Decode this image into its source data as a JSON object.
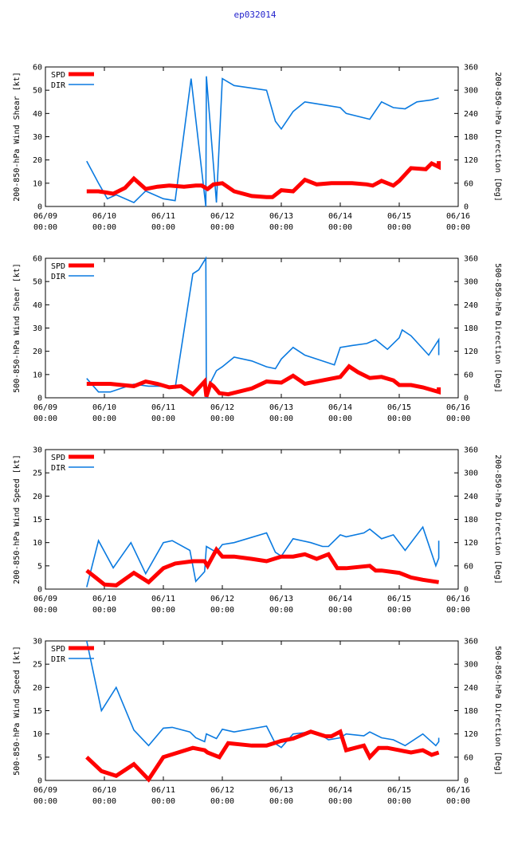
{
  "title": "ep032014",
  "x_tick_labels": [
    [
      "06/09",
      "00:00"
    ],
    [
      "06/10",
      "00:00"
    ],
    [
      "06/11",
      "00:00"
    ],
    [
      "06/12",
      "00:00"
    ],
    [
      "06/13",
      "00:00"
    ],
    [
      "06/14",
      "00:00"
    ],
    [
      "06/15",
      "00:00"
    ],
    [
      "06/16",
      "00:00"
    ]
  ],
  "colors": {
    "spd": "#ff0000",
    "dir": "#0a7ae0",
    "title": "#2222cc"
  },
  "chart_data": [
    {
      "type": "line",
      "ylabel": "200-850-hPa Wind Shear [kt]",
      "y2label": "200-850-hPa Direction [Deg]",
      "ylim": [
        0,
        60
      ],
      "y2lim": [
        0,
        360
      ],
      "yticks": [
        0,
        10,
        20,
        30,
        40,
        50,
        60
      ],
      "y2ticks": [
        0,
        60,
        120,
        180,
        240,
        300,
        360
      ],
      "xlim": [
        0,
        7
      ],
      "series": [
        {
          "name": "SPD",
          "axis": "left",
          "x": [
            0.7,
            0.9,
            1.03,
            1.15,
            1.35,
            1.5,
            1.7,
            1.9,
            2.1,
            2.35,
            2.55,
            2.65,
            2.75,
            2.85,
            3.0,
            3.2,
            3.5,
            3.75,
            3.85,
            4.0,
            4.2,
            4.4,
            4.6,
            4.85,
            5.0,
            5.2,
            5.45,
            5.55,
            5.7,
            5.9,
            6.0,
            6.2,
            6.45,
            6.55,
            6.67,
            6.67
          ],
          "values": [
            6.5,
            6.5,
            6.0,
            5.5,
            8.0,
            12.0,
            7.5,
            8.5,
            9.0,
            8.5,
            9.0,
            9.0,
            7.5,
            9.5,
            10.0,
            6.5,
            4.5,
            4.0,
            4.0,
            7.0,
            6.5,
            11.5,
            9.5,
            10.0,
            10.0,
            10.0,
            9.5,
            9.0,
            11.0,
            9.0,
            11.0,
            16.5,
            16.0,
            18.5,
            17.0,
            19.5
          ]
        },
        {
          "name": "DIR",
          "axis": "right",
          "x": [
            0.7,
            0.9,
            1.05,
            1.2,
            1.5,
            1.7,
            2.0,
            2.2,
            2.47,
            2.72,
            2.73,
            2.9,
            3.0,
            3.2,
            3.75,
            3.9,
            4.0,
            4.2,
            4.4,
            4.6,
            4.8,
            5.0,
            5.1,
            5.5,
            5.7,
            5.9,
            6.1,
            6.3,
            6.55,
            6.67
          ],
          "values": [
            117,
            60,
            20,
            30,
            10,
            40,
            20,
            15,
            330,
            0,
            336,
            10,
            330,
            312,
            300,
            220,
            200,
            245,
            270,
            265,
            260,
            255,
            240,
            225,
            270,
            255,
            252,
            270,
            275,
            280
          ]
        }
      ]
    },
    {
      "type": "line",
      "ylabel": "500-850-hPa Wind Shear [kt]",
      "y2label": "500-850-hPa Direction [Deg]",
      "ylim": [
        0,
        60
      ],
      "y2lim": [
        0,
        360
      ],
      "yticks": [
        0,
        10,
        20,
        30,
        40,
        50,
        60
      ],
      "y2ticks": [
        0,
        60,
        120,
        180,
        240,
        300,
        360
      ],
      "xlim": [
        0,
        7
      ],
      "series": [
        {
          "name": "SPD",
          "axis": "left",
          "x": [
            0.7,
            0.9,
            1.1,
            1.3,
            1.5,
            1.7,
            1.9,
            2.1,
            2.3,
            2.5,
            2.7,
            2.73,
            2.8,
            2.85,
            2.95,
            3.1,
            3.5,
            3.75,
            4.0,
            4.2,
            4.4,
            4.6,
            4.8,
            5.0,
            5.15,
            5.3,
            5.5,
            5.7,
            5.9,
            6.0,
            6.2,
            6.4,
            6.67,
            6.67
          ],
          "values": [
            6.0,
            6.0,
            6.0,
            5.5,
            5.0,
            7.0,
            6.0,
            4.5,
            5.0,
            1.5,
            7.0,
            0.5,
            6.0,
            5.0,
            2.0,
            1.5,
            4.0,
            7.0,
            6.5,
            9.5,
            6.0,
            7.0,
            8.0,
            9.0,
            13.5,
            11.0,
            8.5,
            9.0,
            7.5,
            5.5,
            5.5,
            4.5,
            2.5,
            4.5
          ]
        },
        {
          "name": "DIR",
          "axis": "right",
          "x": [
            0.7,
            0.9,
            1.1,
            1.3,
            1.5,
            1.75,
            2.0,
            2.2,
            2.5,
            2.6,
            2.72,
            2.73,
            2.8,
            2.9,
            3.0,
            3.2,
            3.5,
            3.75,
            3.9,
            4.0,
            4.2,
            4.4,
            4.6,
            4.8,
            4.9,
            5.0,
            5.2,
            5.45,
            5.6,
            5.8,
            6.0,
            6.05,
            6.2,
            6.5,
            6.67,
            6.67
          ],
          "values": [
            50,
            15,
            15,
            25,
            35,
            30,
            30,
            25,
            320,
            330,
            360,
            0,
            40,
            70,
            80,
            105,
            95,
            80,
            75,
            100,
            130,
            110,
            100,
            90,
            85,
            130,
            135,
            140,
            150,
            125,
            155,
            175,
            160,
            110,
            150,
            110
          ]
        }
      ]
    },
    {
      "type": "line",
      "ylabel": "200-850-hPa Wind Speed [kt]",
      "y2label": "200-850-hPa Direction [Deg]",
      "ylim": [
        0,
        30
      ],
      "y2lim": [
        0,
        360
      ],
      "yticks": [
        0,
        5,
        10,
        15,
        20,
        25,
        30
      ],
      "y2ticks": [
        0,
        60,
        120,
        180,
        240,
        300,
        360
      ],
      "xlim": [
        0,
        7
      ],
      "series": [
        {
          "name": "SPD",
          "axis": "left",
          "x": [
            0.7,
            0.85,
            1.0,
            1.2,
            1.5,
            1.75,
            2.0,
            2.2,
            2.5,
            2.7,
            2.75,
            2.9,
            3.0,
            3.2,
            3.5,
            3.75,
            4.0,
            4.2,
            4.4,
            4.6,
            4.8,
            4.95,
            5.1,
            5.5,
            5.6,
            5.7,
            6.0,
            6.2,
            6.4,
            6.67
          ],
          "values": [
            4.0,
            2.5,
            1.0,
            0.8,
            3.5,
            1.5,
            4.5,
            5.5,
            6.0,
            6.0,
            5.0,
            8.5,
            7.0,
            7.0,
            6.5,
            6.0,
            7.0,
            7.0,
            7.5,
            6.5,
            7.5,
            4.5,
            4.5,
            5.0,
            4.0,
            4.0,
            3.5,
            2.5,
            2.0,
            1.5
          ]
        },
        {
          "name": "DIR",
          "axis": "right",
          "x": [
            0.7,
            0.9,
            1.15,
            1.45,
            1.7,
            2.0,
            2.15,
            2.45,
            2.55,
            2.7,
            2.73,
            2.9,
            3.0,
            3.2,
            3.75,
            3.9,
            4.0,
            4.2,
            4.5,
            4.7,
            4.8,
            5.0,
            5.1,
            5.4,
            5.5,
            5.7,
            5.9,
            6.1,
            6.4,
            6.62,
            6.67,
            6.67
          ],
          "values": [
            5,
            125,
            55,
            120,
            40,
            120,
            125,
            100,
            20,
            45,
            110,
            95,
            115,
            120,
            145,
            95,
            85,
            130,
            120,
            110,
            110,
            140,
            135,
            145,
            155,
            130,
            140,
            100,
            160,
            60,
            80,
            125
          ]
        }
      ]
    },
    {
      "type": "line",
      "ylabel": "500-850-hPa Wind Speed [kt]",
      "y2label": "500-850-hPa Direction [Deg]",
      "ylim": [
        0,
        30
      ],
      "y2lim": [
        0,
        360
      ],
      "yticks": [
        0,
        5,
        10,
        15,
        20,
        25,
        30
      ],
      "y2ticks": [
        0,
        60,
        120,
        180,
        240,
        300,
        360
      ],
      "xlim": [
        0,
        7
      ],
      "series": [
        {
          "name": "SPD",
          "axis": "left",
          "x": [
            0.7,
            0.95,
            1.2,
            1.5,
            1.75,
            2.0,
            2.25,
            2.5,
            2.7,
            2.75,
            2.95,
            3.1,
            3.5,
            3.75,
            4.0,
            4.2,
            4.5,
            4.75,
            4.85,
            5.0,
            5.1,
            5.4,
            5.5,
            5.65,
            5.8,
            6.0,
            6.2,
            6.4,
            6.55,
            6.67
          ],
          "values": [
            5.0,
            2.0,
            1.0,
            3.5,
            0.2,
            5.0,
            6.0,
            7.0,
            6.5,
            6.0,
            5.0,
            8.0,
            7.5,
            7.5,
            8.5,
            9.0,
            10.5,
            9.5,
            9.5,
            10.5,
            6.5,
            7.5,
            5.0,
            7.0,
            7.0,
            6.5,
            6.0,
            6.5,
            5.5,
            6.0
          ]
        },
        {
          "name": "DIR",
          "axis": "right",
          "x": [
            0.7,
            0.95,
            1.2,
            1.5,
            1.75,
            2.0,
            2.15,
            2.45,
            2.55,
            2.7,
            2.73,
            2.9,
            3.0,
            3.2,
            3.75,
            3.9,
            4.0,
            4.2,
            4.5,
            4.7,
            4.8,
            5.0,
            5.1,
            5.4,
            5.5,
            5.7,
            5.9,
            6.1,
            6.4,
            6.62,
            6.67,
            6.67
          ],
          "values": [
            360,
            180,
            240,
            130,
            90,
            135,
            137,
            125,
            110,
            100,
            120,
            108,
            132,
            125,
            140,
            95,
            85,
            120,
            125,
            115,
            105,
            110,
            120,
            115,
            125,
            110,
            105,
            90,
            120,
            90,
            100,
            110
          ]
        }
      ]
    }
  ]
}
